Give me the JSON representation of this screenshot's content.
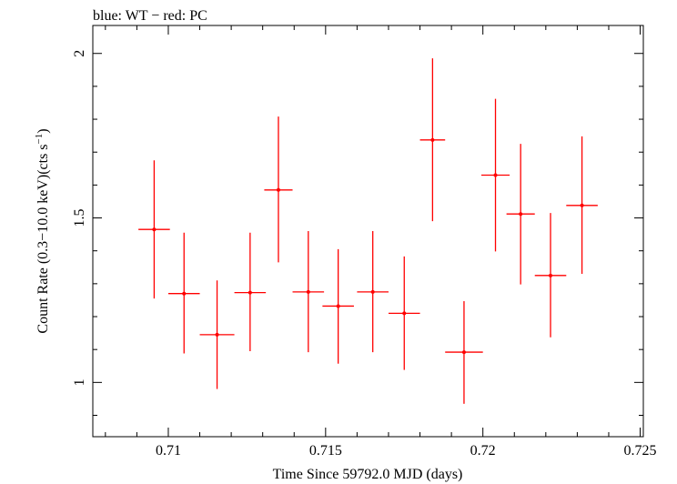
{
  "chart_data": {
    "type": "scatter",
    "title": "blue: WT − red: PC",
    "xlabel": "Time Since 59792.0 MJD (days)",
    "ylabel_main": "Count Rate (0.3−10.0 keV)(cts s",
    "ylabel_sup": "−1",
    "ylabel_close": ")",
    "xlim": [
      0.7076,
      0.7251
    ],
    "ylim": [
      0.835,
      2.085
    ],
    "x_ticks": [
      {
        "value": 0.71,
        "label": "0.71"
      },
      {
        "value": 0.715,
        "label": "0.715"
      },
      {
        "value": 0.72,
        "label": "0.72"
      },
      {
        "value": 0.725,
        "label": "0.725"
      }
    ],
    "y_ticks": [
      {
        "value": 1.0,
        "label": "1"
      },
      {
        "value": 1.5,
        "label": "1.5"
      },
      {
        "value": 2.0,
        "label": "2"
      }
    ],
    "series_color": "#ff0000",
    "points": [
      {
        "x": 0.70955,
        "xerr": 0.0005,
        "y": 1.465,
        "ylo": 1.255,
        "yhi": 1.675
      },
      {
        "x": 0.7105,
        "xerr": 0.0005,
        "y": 1.27,
        "ylo": 1.088,
        "yhi": 1.455
      },
      {
        "x": 0.71155,
        "xerr": 0.00055,
        "y": 1.145,
        "ylo": 0.98,
        "yhi": 1.31
      },
      {
        "x": 0.7126,
        "xerr": 0.0005,
        "y": 1.273,
        "ylo": 1.095,
        "yhi": 1.455
      },
      {
        "x": 0.7135,
        "xerr": 0.00045,
        "y": 1.585,
        "ylo": 1.365,
        "yhi": 1.808
      },
      {
        "x": 0.71445,
        "xerr": 0.0005,
        "y": 1.275,
        "ylo": 1.092,
        "yhi": 1.46
      },
      {
        "x": 0.7154,
        "xerr": 0.0005,
        "y": 1.232,
        "ylo": 1.057,
        "yhi": 1.405
      },
      {
        "x": 0.7165,
        "xerr": 0.0005,
        "y": 1.275,
        "ylo": 1.092,
        "yhi": 1.46
      },
      {
        "x": 0.7175,
        "xerr": 0.0005,
        "y": 1.21,
        "ylo": 1.038,
        "yhi": 1.383
      },
      {
        "x": 0.7184,
        "xerr": 0.0004,
        "y": 1.737,
        "ylo": 1.49,
        "yhi": 1.985
      },
      {
        "x": 0.7194,
        "xerr": 0.0006,
        "y": 1.092,
        "ylo": 0.935,
        "yhi": 1.247
      },
      {
        "x": 0.7204,
        "xerr": 0.00045,
        "y": 1.63,
        "ylo": 1.398,
        "yhi": 1.862
      },
      {
        "x": 0.7212,
        "xerr": 0.00045,
        "y": 1.512,
        "ylo": 1.298,
        "yhi": 1.725
      },
      {
        "x": 0.72215,
        "xerr": 0.0005,
        "y": 1.325,
        "ylo": 1.137,
        "yhi": 1.515
      },
      {
        "x": 0.72315,
        "xerr": 0.0005,
        "y": 1.538,
        "ylo": 1.33,
        "yhi": 1.748
      }
    ]
  }
}
